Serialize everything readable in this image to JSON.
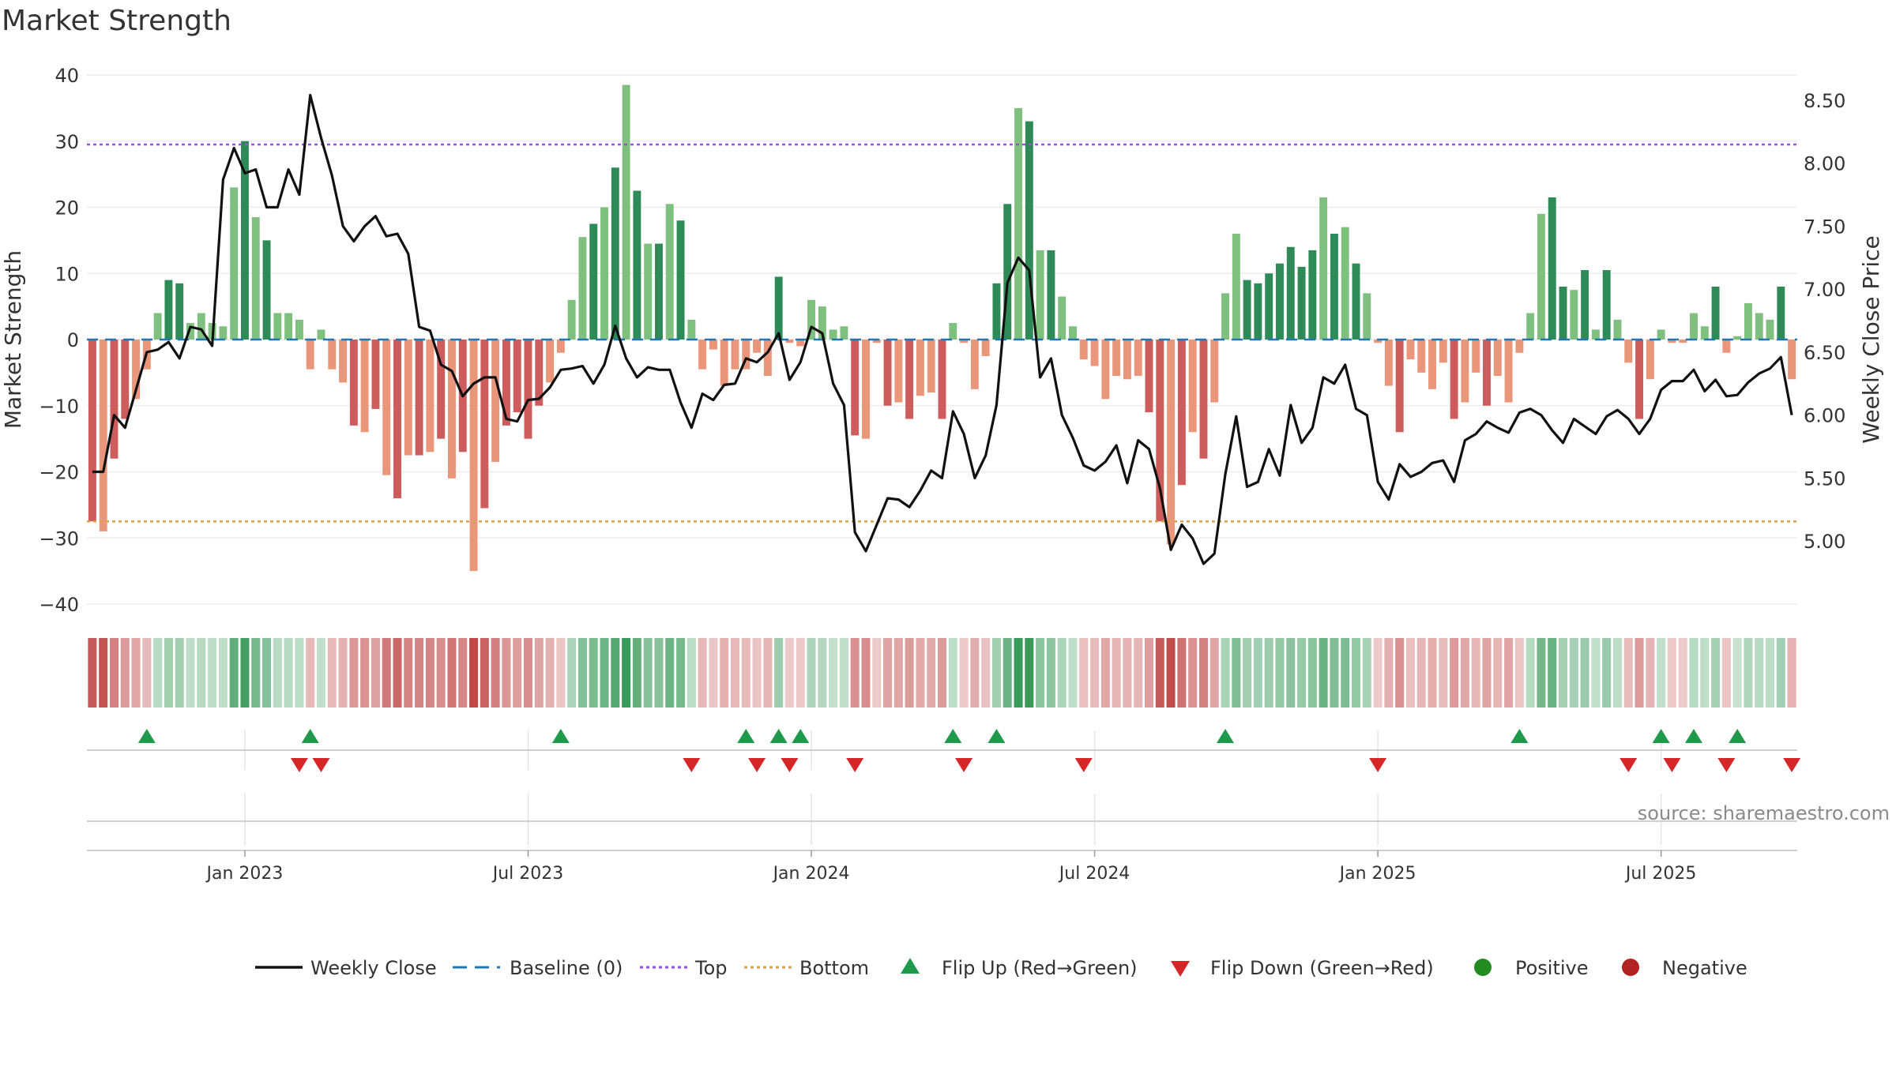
{
  "title": "Market Strength",
  "source": "source: sharemaestro.com",
  "chart_data": {
    "type": "bar",
    "title": "Market Strength",
    "ylabel_left": "Market Strength",
    "ylabel_right": "Weekly Close Price",
    "ylim_left": [
      -40,
      40
    ],
    "ylim_right": [
      4.5,
      8.7
    ],
    "left_ticks": [
      "40",
      "30",
      "20",
      "10",
      "0",
      "−10",
      "−20",
      "−30",
      "−40"
    ],
    "left_tick_values": [
      40,
      30,
      20,
      10,
      0,
      -10,
      -20,
      -30,
      -40
    ],
    "right_ticks": [
      "8.50",
      "8.00",
      "7.50",
      "7.00",
      "6.50",
      "6.00",
      "5.50",
      "5.00"
    ],
    "right_tick_values": [
      8.5,
      8.0,
      7.5,
      7.0,
      6.5,
      6.0,
      5.5,
      5.0
    ],
    "x_ticks": [
      {
        "label": "Jan 2023",
        "index": 14
      },
      {
        "label": "Jul 2023",
        "index": 40
      },
      {
        "label": "Jan 2024",
        "index": 66
      },
      {
        "label": "Jul 2024",
        "index": 92
      },
      {
        "label": "Jan 2025",
        "index": 118
      },
      {
        "label": "Jul 2025",
        "index": 144
      }
    ],
    "top_level": 29.5,
    "bottom_level": -27.5,
    "baseline": 0,
    "strength": [
      -27.5,
      -29,
      -18,
      -12,
      -9,
      -4.5,
      4,
      9,
      8.5,
      2.5,
      4,
      2.5,
      2,
      23,
      30,
      18.5,
      15,
      4,
      4,
      3,
      -4.5,
      1.5,
      -4.5,
      -6.5,
      -13,
      -14,
      -10.5,
      -20.5,
      -24,
      -17.5,
      -17.5,
      -17,
      -15,
      -21,
      -17,
      -35,
      -25.5,
      -18.5,
      -13,
      -11,
      -15,
      -10,
      -6.5,
      -2,
      6,
      15.5,
      17.5,
      20,
      26,
      38.5,
      22.5,
      14.5,
      14.5,
      20.5,
      18,
      3,
      -4.5,
      -1.5,
      -7,
      -4.5,
      -4.5,
      -2,
      -5.5,
      9.5,
      -0.5,
      -1,
      6,
      5,
      1.5,
      2,
      -14.5,
      -15,
      -0.5,
      -10,
      -9.5,
      -12,
      -8.5,
      -8,
      -12,
      2.5,
      -0.5,
      -7.5,
      -2.5,
      8.5,
      20.5,
      35,
      33,
      13.5,
      13.5,
      6.5,
      2,
      -3,
      -4,
      -9,
      -5.5,
      -6,
      -5.5,
      -11,
      -27.5,
      -31,
      -22,
      -14,
      -18,
      -9.5,
      7,
      16,
      9,
      8.5,
      10,
      11.5,
      14,
      11,
      13.5,
      21.5,
      16,
      17,
      11.5,
      7,
      -0.5,
      -7,
      -14,
      -3,
      -5,
      -7.5,
      -3.5,
      -12,
      -9.5,
      -5,
      -10,
      -5.5,
      -9.5,
      -2,
      4,
      19,
      21.5,
      8,
      7.5,
      10.5,
      1.5,
      10.5,
      3,
      -3.5,
      -12,
      -6,
      1.5,
      -0.5,
      -0.5,
      4,
      2,
      8,
      -2,
      0.5,
      5.5,
      4,
      3,
      8,
      -6
    ],
    "weekly_close": [
      5.55,
      5.55,
      6.0,
      5.9,
      6.2,
      6.5,
      6.52,
      6.58,
      6.45,
      6.7,
      6.68,
      6.55,
      7.87,
      8.12,
      7.92,
      7.95,
      7.65,
      7.65,
      7.95,
      7.75,
      8.54,
      8.2,
      7.9,
      7.5,
      7.38,
      7.5,
      7.58,
      7.42,
      7.44,
      7.28,
      6.7,
      6.67,
      6.4,
      6.35,
      6.15,
      6.25,
      6.3,
      6.3,
      5.97,
      5.95,
      6.12,
      6.13,
      6.22,
      6.36,
      6.37,
      6.39,
      6.25,
      6.4,
      6.71,
      6.45,
      6.3,
      6.38,
      6.36,
      6.36,
      6.1,
      5.9,
      6.17,
      6.12,
      6.24,
      6.25,
      6.45,
      6.42,
      6.5,
      6.65,
      6.28,
      6.42,
      6.7,
      6.65,
      6.25,
      6.08,
      5.07,
      4.92,
      5.13,
      5.34,
      5.33,
      5.27,
      5.4,
      5.56,
      5.5,
      6.03,
      5.85,
      5.5,
      5.68,
      6.08,
      7.05,
      7.25,
      7.15,
      6.3,
      6.45,
      6.0,
      5.82,
      5.6,
      5.56,
      5.63,
      5.76,
      5.46,
      5.8,
      5.73,
      5.42,
      4.93,
      5.13,
      5.02,
      4.82,
      4.9,
      5.53,
      5.99,
      5.43,
      5.47,
      5.73,
      5.52,
      6.08,
      5.78,
      5.9,
      6.3,
      6.25,
      6.4,
      6.05,
      6.0,
      5.47,
      5.33,
      5.61,
      5.51,
      5.55,
      5.62,
      5.64,
      5.47,
      5.8,
      5.85,
      5.95,
      5.9,
      5.86,
      6.02,
      6.05,
      6.0,
      5.88,
      5.78,
      5.97,
      5.91,
      5.85,
      5.99,
      6.04,
      5.97,
      5.85,
      5.97,
      6.2,
      6.27,
      6.27,
      6.36,
      6.19,
      6.28,
      6.15,
      6.16,
      6.26,
      6.33,
      6.37,
      6.46,
      6.0
    ],
    "flip_up_indices": [
      5,
      20,
      43,
      60,
      63,
      65,
      79,
      83,
      104,
      131,
      144,
      147,
      151
    ],
    "flip_down_indices": [
      19,
      21,
      55,
      61,
      64,
      70,
      80,
      91,
      118,
      141,
      145,
      150,
      156
    ],
    "legend": [
      "Weekly Close",
      "Baseline (0)",
      "Top",
      "Bottom",
      "Flip Up (Red→Green)",
      "Flip Down (Green→Red)",
      "Positive",
      "Negative"
    ],
    "legend_position": "bottom-center",
    "colors": {
      "pos_dark": "#2e8b57",
      "pos_light": "#7fc07e",
      "neg_dark": "#cd5c5c",
      "neg_light": "#e9967a",
      "close": "#111111",
      "baseline": "#1f77b4",
      "top": "#9b4fd6",
      "bottom": "#d9a24e",
      "flip_up": "#1e9a4a",
      "flip_down": "#d62728",
      "positive_dot": "#228b22",
      "negative_dot": "#b22222"
    }
  }
}
